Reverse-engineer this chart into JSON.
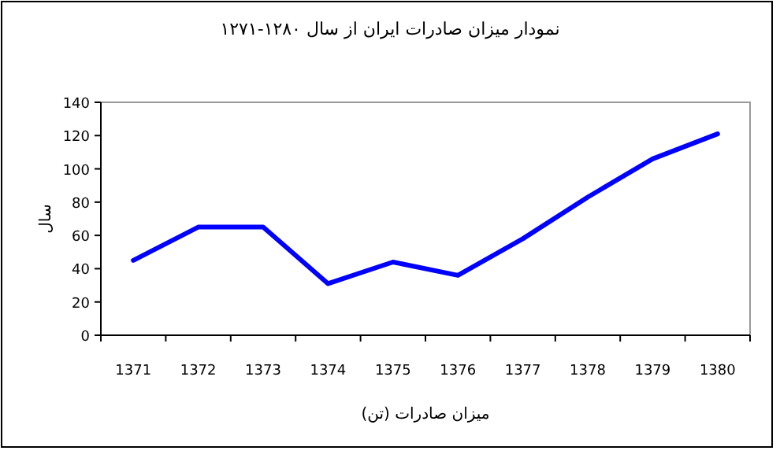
{
  "chart_data": {
    "type": "line",
    "title": "نمودار میزان صادرات ایران از سال ۱۲۸۰-۱۲۷۱",
    "xlabel": "میزان صادرات (تن)",
    "ylabel": "سال",
    "categories": [
      "1371",
      "1372",
      "1373",
      "1374",
      "1375",
      "1376",
      "1377",
      "1378",
      "1379",
      "1380"
    ],
    "series": [
      {
        "color": "#0000ff",
        "values": [
          45,
          65,
          65,
          31,
          44,
          36,
          58,
          83,
          106,
          121
        ]
      }
    ],
    "ylim": [
      0,
      140
    ],
    "yticks": [
      0,
      20,
      40,
      60,
      80,
      100,
      120,
      140
    ],
    "grid": false,
    "marker": "none",
    "line_style": "solid"
  }
}
